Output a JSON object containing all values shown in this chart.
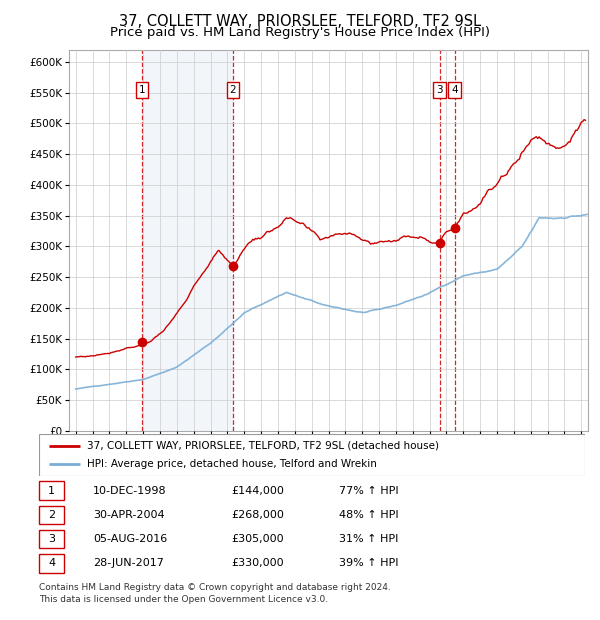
{
  "title": "37, COLLETT WAY, PRIORSLEE, TELFORD, TF2 9SL",
  "subtitle": "Price paid vs. HM Land Registry's House Price Index (HPI)",
  "ylim": [
    0,
    620000
  ],
  "yticks": [
    0,
    50000,
    100000,
    150000,
    200000,
    250000,
    300000,
    350000,
    400000,
    450000,
    500000,
    550000,
    600000
  ],
  "xlim_start": 1994.6,
  "xlim_end": 2025.4,
  "background_color": "#ffffff",
  "plot_bg_color": "#ffffff",
  "grid_color": "#cccccc",
  "red_line_color": "#cc0000",
  "blue_line_color": "#7aaed6",
  "sale_color": "#cc0000",
  "vline_color": "#cc0000",
  "shade_color": "#ccddef",
  "title_fontsize": 10.5,
  "subtitle_fontsize": 9.5,
  "transactions": [
    {
      "num": 1,
      "date_num": 1998.94,
      "price": 144000,
      "label": "1"
    },
    {
      "num": 2,
      "date_num": 2004.33,
      "price": 268000,
      "label": "2"
    },
    {
      "num": 3,
      "date_num": 2016.59,
      "price": 305000,
      "label": "3"
    },
    {
      "num": 4,
      "date_num": 2017.49,
      "price": 330000,
      "label": "4"
    }
  ],
  "shade_x1": 1998.94,
  "shade_x2": 2004.33,
  "legend_line1": "37, COLLETT WAY, PRIORSLEE, TELFORD, TF2 9SL (detached house)",
  "legend_line2": "HPI: Average price, detached house, Telford and Wrekin",
  "table_rows": [
    {
      "num": "1",
      "date": "10-DEC-1998",
      "price": "£144,000",
      "hpi": "77% ↑ HPI"
    },
    {
      "num": "2",
      "date": "30-APR-2004",
      "price": "£268,000",
      "hpi": "48% ↑ HPI"
    },
    {
      "num": "3",
      "date": "05-AUG-2016",
      "price": "£305,000",
      "hpi": "31% ↑ HPI"
    },
    {
      "num": "4",
      "date": "28-JUN-2017",
      "price": "£330,000",
      "hpi": "39% ↑ HPI"
    }
  ],
  "footer": "Contains HM Land Registry data © Crown copyright and database right 2024.\nThis data is licensed under the Open Government Licence v3.0."
}
